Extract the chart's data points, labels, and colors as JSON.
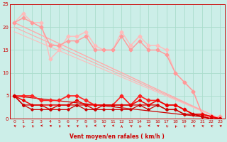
{
  "bg_color": "#cceee8",
  "grid_color": "#aaddcc",
  "xlabel": "Vent moyen/en rafales ( km/h )",
  "xlim": [
    -0.5,
    23.5
  ],
  "ylim": [
    0,
    25
  ],
  "yticks": [
    0,
    5,
    10,
    15,
    20,
    25
  ],
  "xticks": [
    0,
    1,
    2,
    3,
    4,
    5,
    6,
    7,
    8,
    9,
    10,
    11,
    12,
    13,
    14,
    15,
    16,
    17,
    18,
    19,
    20,
    21,
    22,
    23
  ],
  "series": [
    {
      "comment": "light pink zigzag - rafales high",
      "x": [
        0,
        1,
        2,
        3,
        4,
        5,
        6,
        7,
        8,
        9,
        10,
        11,
        12,
        13,
        14,
        15,
        16,
        17,
        18,
        19,
        20,
        21,
        22,
        23
      ],
      "y": [
        21,
        23,
        21,
        21,
        13,
        15,
        18,
        18,
        19,
        16,
        15,
        15,
        19,
        16,
        18,
        16,
        16,
        15,
        10,
        8,
        6,
        1,
        0,
        0.5
      ],
      "color": "#ffbbbb",
      "lw": 1.0,
      "marker": "D",
      "ms": 2.5,
      "zorder": 3
    },
    {
      "comment": "medium pink zigzag",
      "x": [
        0,
        1,
        2,
        3,
        4,
        5,
        6,
        7,
        8,
        9,
        10,
        11,
        12,
        13,
        14,
        15,
        16,
        17,
        18,
        19,
        20,
        21,
        22,
        23
      ],
      "y": [
        21,
        22,
        21,
        20,
        16,
        16,
        17,
        17,
        18,
        15,
        15,
        15,
        18,
        15,
        17,
        15,
        15,
        14,
        10,
        8,
        6,
        1,
        0,
        0.5
      ],
      "color": "#ff9999",
      "lw": 1.0,
      "marker": "D",
      "ms": 2.5,
      "zorder": 3
    },
    {
      "comment": "slightly darker pink - straight diagonal line (rafales trend)",
      "x": [
        0,
        23
      ],
      "y": [
        21,
        0
      ],
      "color": "#ffaaaa",
      "lw": 1.0,
      "marker": "none",
      "ms": 0,
      "zorder": 2
    },
    {
      "comment": "slightly darker pink diagonal 2",
      "x": [
        0,
        23
      ],
      "y": [
        20,
        0
      ],
      "color": "#ffaaaa",
      "lw": 0.8,
      "marker": "none",
      "ms": 0,
      "zorder": 2
    },
    {
      "comment": "pink diagonal 3",
      "x": [
        0,
        23
      ],
      "y": [
        19,
        0
      ],
      "color": "#ffbbbb",
      "lw": 0.8,
      "marker": "none",
      "ms": 0,
      "zorder": 2
    },
    {
      "comment": "dark red zigzag moyen high",
      "x": [
        0,
        1,
        2,
        3,
        4,
        5,
        6,
        7,
        8,
        9,
        10,
        11,
        12,
        13,
        14,
        15,
        16,
        17,
        18,
        19,
        20,
        21,
        22,
        23
      ],
      "y": [
        5,
        5,
        5,
        4,
        4,
        4,
        5,
        5,
        4,
        3,
        3,
        3,
        5,
        3,
        5,
        4,
        4,
        3,
        3,
        2,
        1,
        1,
        0.5,
        0
      ],
      "color": "#ff2222",
      "lw": 1.2,
      "marker": "D",
      "ms": 2.5,
      "zorder": 4
    },
    {
      "comment": "dark red zigzag moyen 2",
      "x": [
        0,
        1,
        2,
        3,
        4,
        5,
        6,
        7,
        8,
        9,
        10,
        11,
        12,
        13,
        14,
        15,
        16,
        17,
        18,
        19,
        20,
        21,
        22,
        23
      ],
      "y": [
        5,
        4,
        3,
        3,
        3,
        3,
        3,
        4,
        3,
        3,
        3,
        3,
        3,
        3,
        4,
        3,
        4,
        3,
        3,
        2,
        1,
        1,
        0.5,
        0
      ],
      "color": "#ee0000",
      "lw": 1.1,
      "marker": "D",
      "ms": 2.0,
      "zorder": 4
    },
    {
      "comment": "dark red zigzag moyen 3",
      "x": [
        0,
        1,
        2,
        3,
        4,
        5,
        6,
        7,
        8,
        9,
        10,
        11,
        12,
        13,
        14,
        15,
        16,
        17,
        18,
        19,
        20,
        21,
        22,
        23
      ],
      "y": [
        5,
        3,
        3,
        3,
        2,
        3,
        3,
        3,
        3,
        2,
        3,
        3,
        3,
        3,
        3,
        3,
        3,
        2,
        2,
        1,
        1,
        0.5,
        0,
        0
      ],
      "color": "#dd0000",
      "lw": 1.0,
      "marker": "D",
      "ms": 2.0,
      "zorder": 4
    },
    {
      "comment": "dark red flat near 0",
      "x": [
        0,
        1,
        2,
        3,
        4,
        5,
        6,
        7,
        8,
        9,
        10,
        11,
        12,
        13,
        14,
        15,
        16,
        17,
        18,
        19,
        20,
        21,
        22,
        23
      ],
      "y": [
        5,
        3,
        2,
        2,
        2,
        2,
        2,
        3,
        2,
        2,
        2,
        2,
        2,
        2,
        3,
        2,
        3,
        2,
        2,
        1,
        1,
        0.5,
        0,
        0
      ],
      "color": "#cc0000",
      "lw": 0.9,
      "marker": "D",
      "ms": 1.8,
      "zorder": 4
    },
    {
      "comment": "dark red diagonal straight",
      "x": [
        0,
        23
      ],
      "y": [
        5,
        0
      ],
      "color": "#cc0000",
      "lw": 0.9,
      "marker": "none",
      "ms": 0,
      "zorder": 2
    }
  ],
  "wind_arrows": {
    "x": [
      0,
      1,
      2,
      3,
      4,
      5,
      6,
      7,
      8,
      9,
      10,
      11,
      12,
      13,
      14,
      15,
      16,
      17,
      18,
      19,
      20,
      21,
      22,
      23
    ],
    "angles_deg": [
      225,
      200,
      210,
      270,
      245,
      210,
      225,
      225,
      210,
      270,
      225,
      270,
      180,
      225,
      200,
      270,
      240,
      210,
      200,
      210,
      225,
      225,
      225,
      230
    ]
  }
}
